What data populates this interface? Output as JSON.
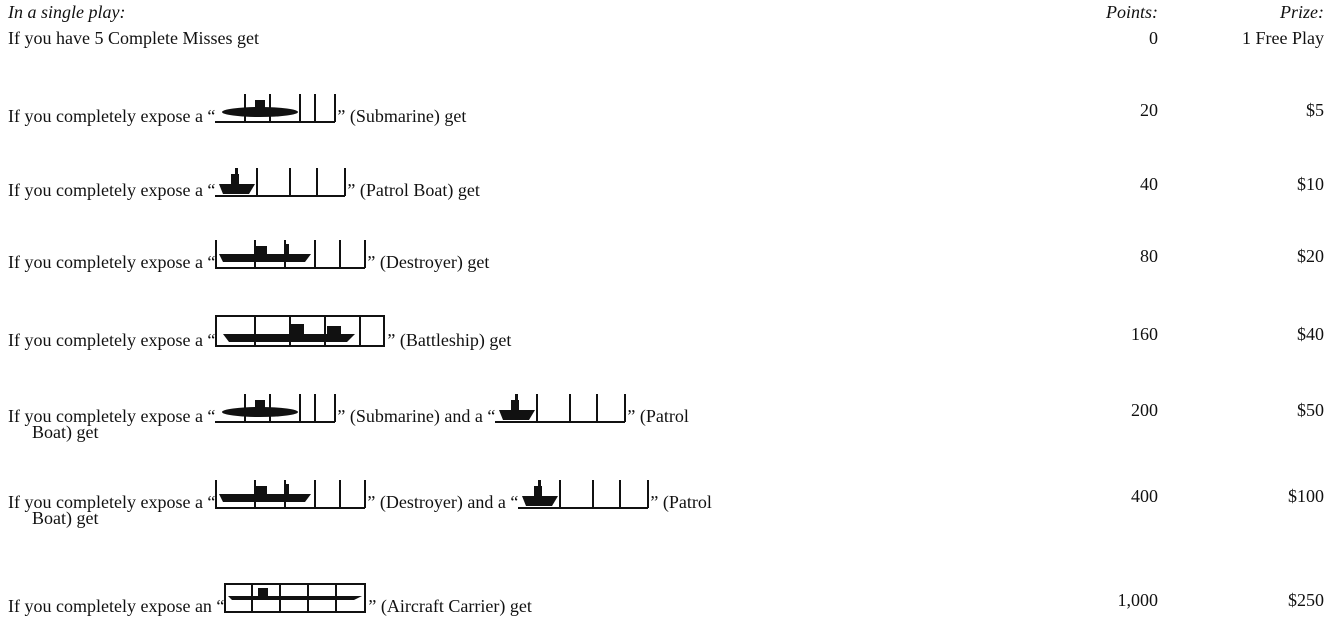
{
  "header": {
    "intro": "In a single play:",
    "points": "Points:",
    "prize": "Prize:"
  },
  "rows": [
    {
      "parts": [
        "If you have 5 Complete Misses get"
      ],
      "points": "0",
      "prize": "1 Free Play"
    },
    {
      "parts": [
        "If you completely expose a “",
        "” (Submarine) get"
      ],
      "points": "20",
      "prize": "$5"
    },
    {
      "parts": [
        "If you completely expose a “",
        "” (Patrol Boat) get"
      ],
      "points": "40",
      "prize": "$10"
    },
    {
      "parts": [
        "If you completely expose a “",
        "” (Destroyer) get"
      ],
      "points": "80",
      "prize": "$20"
    },
    {
      "parts": [
        "If you completely expose a “",
        "” (Battleship) get"
      ],
      "points": "160",
      "prize": "$40"
    },
    {
      "parts": [
        "If you completely expose a “",
        "” (Submarine) and a “",
        "” (Patrol",
        "Boat) get"
      ],
      "points": "200",
      "prize": "$50"
    },
    {
      "parts": [
        "If you completely expose a “",
        "” (Destroyer) and a “",
        "” (Patrol",
        "Boat) get"
      ],
      "points": "400",
      "prize": "$100"
    },
    {
      "parts": [
        "If you completely expose an “",
        "” (Aircraft Carrier) get"
      ],
      "points": "1,000",
      "prize": "$250"
    }
  ]
}
